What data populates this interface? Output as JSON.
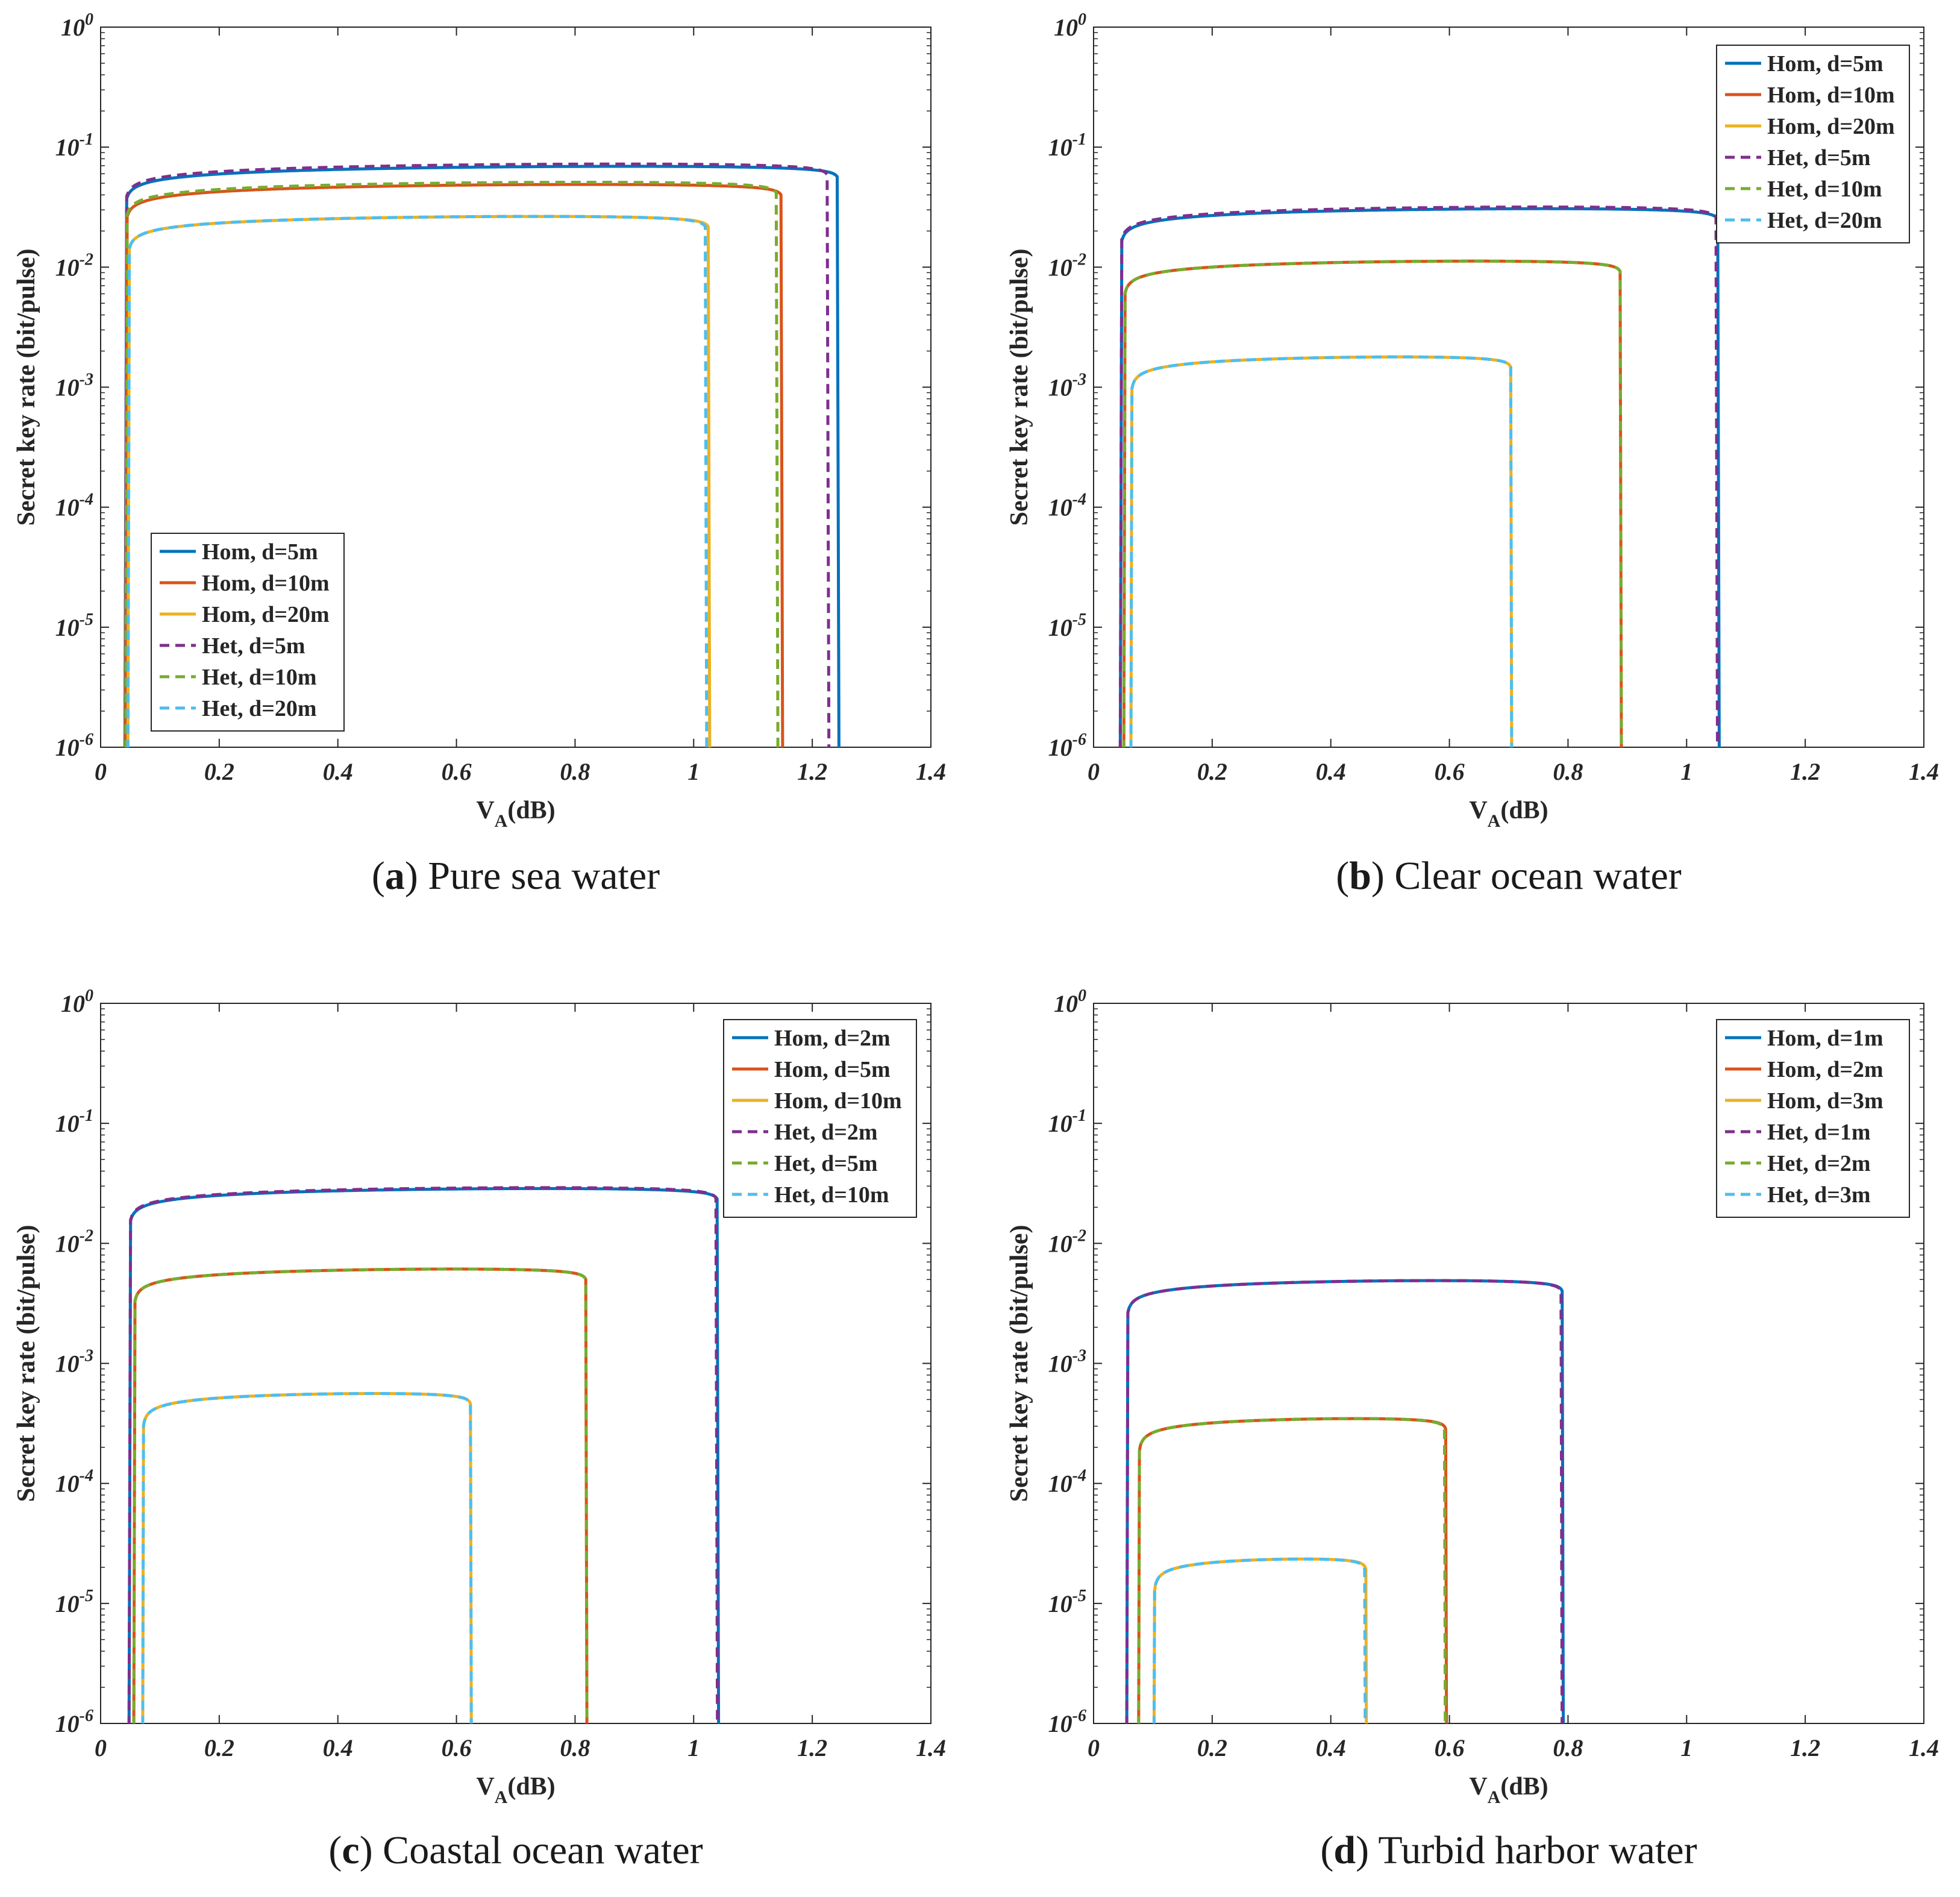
{
  "panel_labels": [
    {
      "letter": "a",
      "caption": "Pure sea water"
    },
    {
      "letter": "b",
      "caption": "Clear ocean water"
    },
    {
      "letter": "c",
      "caption": "Coastal ocean water"
    },
    {
      "letter": "d",
      "caption": "Turbid harbor water"
    }
  ],
  "colors": {
    "hom1": "#0072bd",
    "hom2": "#d95319",
    "hom3": "#edb120",
    "het1": "#7e2f8e",
    "het2": "#77ac30",
    "het3": "#4dbeee"
  },
  "chart_data": [
    {
      "type": "line",
      "panel": "a",
      "title": "Pure sea water",
      "xlabel": "V_A(dB)",
      "ylabel": "Secret key rate (bit/pulse)",
      "yscale": "log",
      "xlim": [
        0,
        1.4
      ],
      "ylim": [
        1e-06,
        1
      ],
      "xticks": [
        "0",
        "0.2",
        "0.4",
        "0.6",
        "0.8",
        "1",
        "1.2",
        "1.4"
      ],
      "yticks": [
        {
          "base": "10",
          "exp": "-6"
        },
        {
          "base": "10",
          "exp": "-5"
        },
        {
          "base": "10",
          "exp": "-4"
        },
        {
          "base": "10",
          "exp": "-3"
        },
        {
          "base": "10",
          "exp": "-2"
        },
        {
          "base": "10",
          "exp": "-1"
        },
        {
          "base": "10",
          "exp": "0"
        }
      ],
      "legend_position": "bottom-left",
      "series": [
        {
          "name": "Hom, d=5m",
          "style": "solid",
          "color": "#0072bd",
          "v_start": 0.041,
          "v_peak": 0.62,
          "peak": 0.068,
          "v_end": 1.245
        },
        {
          "name": "Hom, d=10m",
          "style": "solid",
          "color": "#d95319",
          "v_start": 0.042,
          "v_peak": 0.57,
          "peak": 0.048,
          "v_end": 1.15
        },
        {
          "name": "Hom, d=20m",
          "style": "solid",
          "color": "#edb120",
          "v_start": 0.046,
          "v_peak": 0.52,
          "peak": 0.026,
          "v_end": 1.027
        },
        {
          "name": "Het, d=5m",
          "style": "dashed",
          "color": "#7e2f8e",
          "v_start": 0.041,
          "v_peak": 0.61,
          "peak": 0.071,
          "v_end": 1.228
        },
        {
          "name": "Het, d=10m",
          "style": "dashed",
          "color": "#77ac30",
          "v_start": 0.042,
          "v_peak": 0.56,
          "peak": 0.05,
          "v_end": 1.142
        },
        {
          "name": "Het, d=20m",
          "style": "dashed",
          "color": "#4dbeee",
          "v_start": 0.046,
          "v_peak": 0.51,
          "peak": 0.026,
          "v_end": 1.022
        }
      ]
    },
    {
      "type": "line",
      "panel": "b",
      "title": "Clear ocean water",
      "xlabel": "V_A(dB)",
      "ylabel": "Secret key rate (bit/pulse)",
      "yscale": "log",
      "xlim": [
        0,
        1.4
      ],
      "ylim": [
        1e-06,
        1
      ],
      "xticks": [
        "0",
        "0.2",
        "0.4",
        "0.6",
        "0.8",
        "1",
        "1.2",
        "1.4"
      ],
      "yticks": [
        {
          "base": "10",
          "exp": "-6"
        },
        {
          "base": "10",
          "exp": "-5"
        },
        {
          "base": "10",
          "exp": "-4"
        },
        {
          "base": "10",
          "exp": "-3"
        },
        {
          "base": "10",
          "exp": "-2"
        },
        {
          "base": "10",
          "exp": "-1"
        },
        {
          "base": "10",
          "exp": "0"
        }
      ],
      "legend_position": "top-right",
      "series": [
        {
          "name": "Hom, d=5m",
          "style": "solid",
          "color": "#0072bd",
          "v_start": 0.045,
          "v_peak": 0.5,
          "peak": 0.03,
          "v_end": 1.055
        },
        {
          "name": "Hom, d=10m",
          "style": "solid",
          "color": "#d95319",
          "v_start": 0.051,
          "v_peak": 0.44,
          "peak": 0.011,
          "v_end": 0.89
        },
        {
          "name": "Hom, d=20m",
          "style": "solid",
          "color": "#edb120",
          "v_start": 0.063,
          "v_peak": 0.36,
          "peak": 0.00175,
          "v_end": 0.705
        },
        {
          "name": "Het, d=5m",
          "style": "dashed",
          "color": "#7e2f8e",
          "v_start": 0.045,
          "v_peak": 0.5,
          "peak": 0.031,
          "v_end": 1.052
        },
        {
          "name": "Het, d=10m",
          "style": "dashed",
          "color": "#77ac30",
          "v_start": 0.051,
          "v_peak": 0.44,
          "peak": 0.011,
          "v_end": 0.89
        },
        {
          "name": "Het, d=20m",
          "style": "dashed",
          "color": "#4dbeee",
          "v_start": 0.063,
          "v_peak": 0.36,
          "peak": 0.00175,
          "v_end": 0.705
        }
      ]
    },
    {
      "type": "line",
      "panel": "c",
      "title": "Coastal ocean water",
      "xlabel": "V_A(dB)",
      "ylabel": "Secret key rate (bit/pulse)",
      "yscale": "log",
      "xlim": [
        0,
        1.4
      ],
      "ylim": [
        1e-06,
        1
      ],
      "xticks": [
        "0",
        "0.2",
        "0.4",
        "0.6",
        "0.8",
        "1",
        "1.2",
        "1.4"
      ],
      "yticks": [
        {
          "base": "10",
          "exp": "-6"
        },
        {
          "base": "10",
          "exp": "-5"
        },
        {
          "base": "10",
          "exp": "-4"
        },
        {
          "base": "10",
          "exp": "-3"
        },
        {
          "base": "10",
          "exp": "-2"
        },
        {
          "base": "10",
          "exp": "-1"
        },
        {
          "base": "10",
          "exp": "0"
        }
      ],
      "legend_position": "top-right",
      "series": [
        {
          "name": "Hom, d=2m",
          "style": "solid",
          "color": "#0072bd",
          "v_start": 0.048,
          "v_peak": 0.5,
          "peak": 0.028,
          "v_end": 1.042
        },
        {
          "name": "Hom, d=5m",
          "style": "solid",
          "color": "#d95319",
          "v_start": 0.056,
          "v_peak": 0.42,
          "peak": 0.006,
          "v_end": 0.82
        },
        {
          "name": "Hom, d=10m",
          "style": "solid",
          "color": "#edb120",
          "v_start": 0.071,
          "v_peak": 0.33,
          "peak": 0.00055,
          "v_end": 0.625
        },
        {
          "name": "Het, d=2m",
          "style": "dashed",
          "color": "#7e2f8e",
          "v_start": 0.048,
          "v_peak": 0.5,
          "peak": 0.0285,
          "v_end": 1.04
        },
        {
          "name": "Het, d=5m",
          "style": "dashed",
          "color": "#77ac30",
          "v_start": 0.056,
          "v_peak": 0.42,
          "peak": 0.006,
          "v_end": 0.82
        },
        {
          "name": "Het, d=10m",
          "style": "dashed",
          "color": "#4dbeee",
          "v_start": 0.071,
          "v_peak": 0.33,
          "peak": 0.00055,
          "v_end": 0.625
        }
      ]
    },
    {
      "type": "line",
      "panel": "d",
      "title": "Turbid harbor water",
      "xlabel": "V_A(dB)",
      "ylabel": "Secret key rate (bit/pulse)",
      "yscale": "log",
      "xlim": [
        0,
        1.4
      ],
      "ylim": [
        1e-06,
        1
      ],
      "xticks": [
        "0",
        "0.2",
        "0.4",
        "0.6",
        "0.8",
        "1",
        "1.2",
        "1.4"
      ],
      "yticks": [
        {
          "base": "10",
          "exp": "-6"
        },
        {
          "base": "10",
          "exp": "-5"
        },
        {
          "base": "10",
          "exp": "-4"
        },
        {
          "base": "10",
          "exp": "-3"
        },
        {
          "base": "10",
          "exp": "-2"
        },
        {
          "base": "10",
          "exp": "-1"
        },
        {
          "base": "10",
          "exp": "0"
        }
      ],
      "legend_position": "top-right",
      "series": [
        {
          "name": "Hom, d=1m",
          "style": "solid",
          "color": "#0072bd",
          "v_start": 0.056,
          "v_peak": 0.4,
          "peak": 0.0048,
          "v_end": 0.792
        },
        {
          "name": "Hom, d=2m",
          "style": "solid",
          "color": "#d95319",
          "v_start": 0.076,
          "v_peak": 0.32,
          "peak": 0.00034,
          "v_end": 0.595
        },
        {
          "name": "Hom, d=3m",
          "style": "solid",
          "color": "#edb120",
          "v_start": 0.102,
          "v_peak": 0.27,
          "peak": 2.3e-05,
          "v_end": 0.46
        },
        {
          "name": "Het, d=1m",
          "style": "dashed",
          "color": "#7e2f8e",
          "v_start": 0.056,
          "v_peak": 0.4,
          "peak": 0.0048,
          "v_end": 0.79
        },
        {
          "name": "Het, d=2m",
          "style": "dashed",
          "color": "#77ac30",
          "v_start": 0.076,
          "v_peak": 0.32,
          "peak": 0.00034,
          "v_end": 0.593
        },
        {
          "name": "Het, d=3m",
          "style": "dashed",
          "color": "#4dbeee",
          "v_start": 0.102,
          "v_peak": 0.27,
          "peak": 2.3e-05,
          "v_end": 0.458
        }
      ]
    }
  ]
}
